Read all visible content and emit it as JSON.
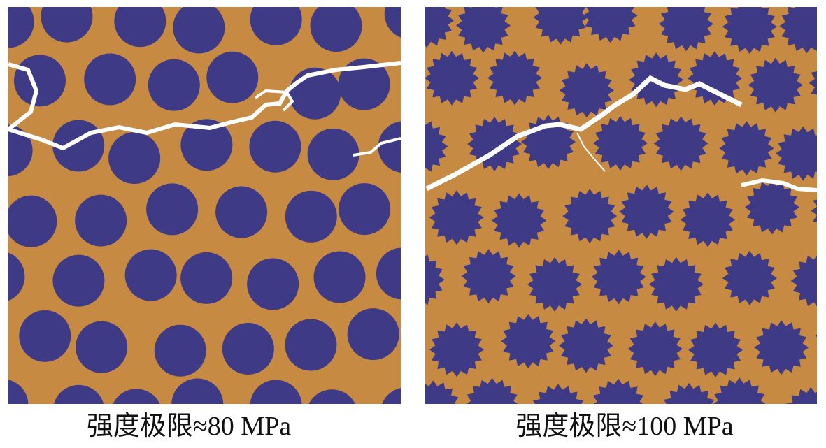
{
  "panels": [
    {
      "caption": "强度极限≈80 MPa"
    },
    {
      "caption": "强度极限≈100 MPa"
    }
  ]
}
